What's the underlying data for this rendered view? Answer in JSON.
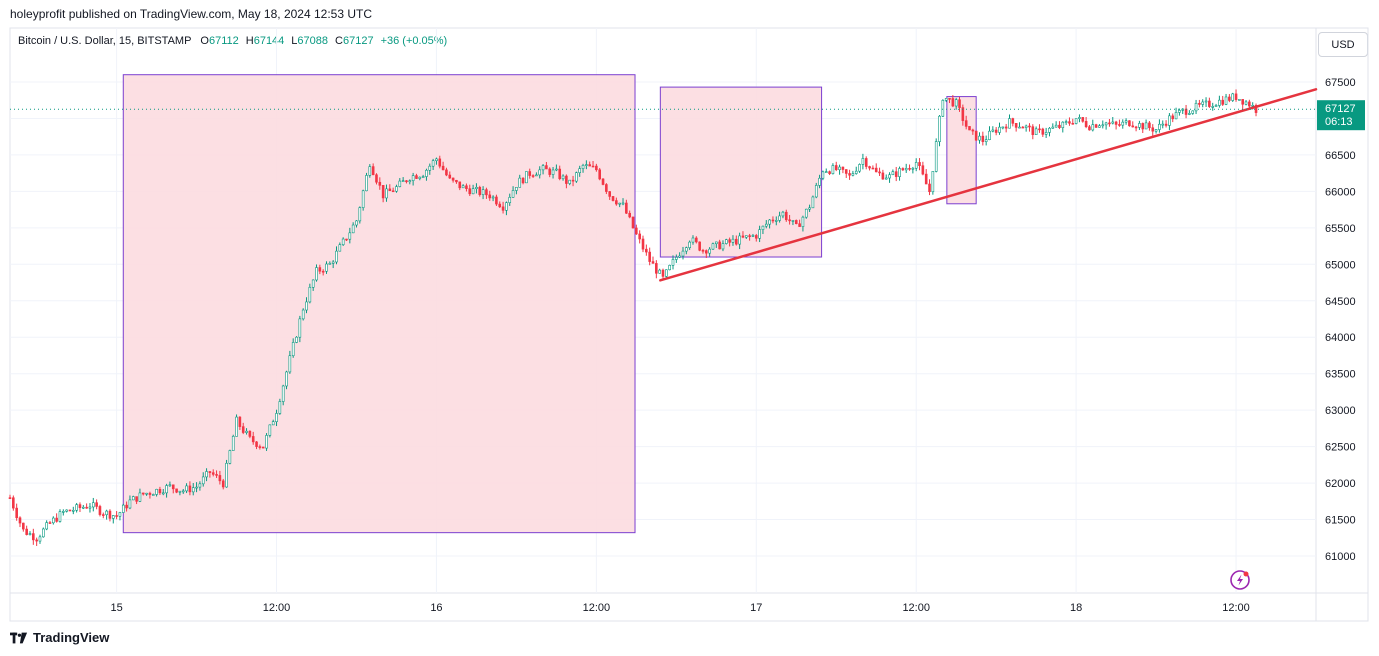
{
  "attribution": "holeyprofit published on TradingView.com, May 18, 2024 12:53 UTC",
  "legend": {
    "symbol": "Bitcoin / U.S. Dollar, 15, BITSTAMP",
    "open_label": "O",
    "open": "67112",
    "high_label": "H",
    "high": "67144",
    "low_label": "L",
    "low": "67088",
    "close_label": "C",
    "close": "67127",
    "change": "+36 (+0.05%)"
  },
  "currency_button": "USD",
  "footer_logo": "TradingView",
  "colors": {
    "up": "#089981",
    "down": "#f23645",
    "zone_fill": "#fcdce0",
    "zone_border": "#7b3fd0",
    "trendline": "#e5343f",
    "price_badge": "#089981"
  },
  "chart_data": {
    "type": "candlestick",
    "y_ticks": [
      67500,
      67000,
      66500,
      66000,
      65500,
      65000,
      64500,
      64000,
      63500,
      63000,
      62500,
      62000,
      61500,
      61000
    ],
    "y_tick_labels": [
      "67500",
      "67000",
      "66500",
      "66000",
      "65500",
      "65000",
      "64500",
      "64000",
      "63500",
      "63000",
      "62500",
      "62000",
      "61500",
      "61000"
    ],
    "x_ticks": [
      {
        "label": "15",
        "t": 0
      },
      {
        "label": "12:00",
        "t": 12
      },
      {
        "label": "16",
        "t": 24
      },
      {
        "label": "12:00",
        "t": 36
      },
      {
        "label": "17",
        "t": 48
      },
      {
        "label": "12:00",
        "t": 60
      },
      {
        "label": "18",
        "t": 72
      },
      {
        "label": "12:00",
        "t": 84
      }
    ],
    "x_range_hours": [
      -8,
      90
    ],
    "y_range": [
      60550,
      67950
    ],
    "last_price": "67127",
    "countdown": "06:13",
    "path_points": [
      [
        -8,
        61800
      ],
      [
        -7,
        61350
      ],
      [
        -6,
        61250
      ],
      [
        -5,
        61450
      ],
      [
        -4,
        61600
      ],
      [
        -3,
        61650
      ],
      [
        -2,
        61700
      ],
      [
        -1,
        61600
      ],
      [
        0,
        61550
      ],
      [
        1,
        61750
      ],
      [
        2,
        61850
      ],
      [
        3,
        61900
      ],
      [
        4,
        61950
      ],
      [
        5,
        61900
      ],
      [
        6,
        61950
      ],
      [
        7,
        62150
      ],
      [
        8,
        62000
      ],
      [
        9,
        62850
      ],
      [
        10,
        62600
      ],
      [
        11,
        62500
      ],
      [
        12,
        63000
      ],
      [
        13,
        63700
      ],
      [
        14,
        64400
      ],
      [
        15,
        64900
      ],
      [
        16,
        65000
      ],
      [
        17,
        65300
      ],
      [
        18,
        65600
      ],
      [
        19,
        66400
      ],
      [
        20,
        65950
      ],
      [
        21,
        66050
      ],
      [
        22,
        66200
      ],
      [
        23,
        66250
      ],
      [
        24,
        66450
      ],
      [
        25,
        66150
      ],
      [
        26,
        66050
      ],
      [
        27,
        66000
      ],
      [
        28,
        65950
      ],
      [
        29,
        65800
      ],
      [
        30,
        66100
      ],
      [
        31,
        66250
      ],
      [
        32,
        66300
      ],
      [
        33,
        66250
      ],
      [
        34,
        66100
      ],
      [
        35,
        66350
      ],
      [
        36,
        66300
      ],
      [
        37,
        65950
      ],
      [
        38,
        65800
      ],
      [
        38.5,
        65600
      ],
      [
        39,
        65400
      ],
      [
        40,
        65050
      ],
      [
        41,
        64800
      ],
      [
        42,
        65100
      ],
      [
        43,
        65350
      ],
      [
        44,
        65200
      ],
      [
        45,
        65250
      ],
      [
        46,
        65300
      ],
      [
        47,
        65350
      ],
      [
        48,
        65400
      ],
      [
        49,
        65600
      ],
      [
        50,
        65700
      ],
      [
        51,
        65500
      ],
      [
        52,
        65800
      ],
      [
        53,
        66300
      ],
      [
        54,
        66300
      ],
      [
        55,
        66200
      ],
      [
        56,
        66450
      ],
      [
        57,
        66250
      ],
      [
        58,
        66200
      ],
      [
        59,
        66300
      ],
      [
        60,
        66400
      ],
      [
        61,
        66000
      ],
      [
        62,
        67300
      ],
      [
        63,
        67200
      ],
      [
        64,
        66800
      ],
      [
        65,
        66700
      ],
      [
        66,
        66850
      ],
      [
        67,
        66950
      ],
      [
        68,
        66900
      ],
      [
        69,
        66800
      ],
      [
        70,
        66850
      ],
      [
        71,
        66900
      ],
      [
        72,
        67000
      ],
      [
        73,
        66900
      ],
      [
        74,
        66950
      ],
      [
        75,
        66900
      ],
      [
        76,
        66950
      ],
      [
        77,
        66900
      ],
      [
        78,
        66850
      ],
      [
        79,
        67000
      ],
      [
        80,
        67100
      ],
      [
        81,
        67150
      ],
      [
        82,
        67200
      ],
      [
        83,
        67250
      ],
      [
        84,
        67300
      ],
      [
        85,
        67200
      ],
      [
        85.5,
        67127
      ]
    ],
    "zones": [
      {
        "t_start": 0.5,
        "t_end": 38.9,
        "y_top": 67600,
        "y_bottom": 61320
      },
      {
        "t_start": 40.8,
        "t_end": 52.9,
        "y_top": 67430,
        "y_bottom": 65100
      },
      {
        "t_start": 62.3,
        "t_end": 64.5,
        "y_top": 67300,
        "y_bottom": 65830
      }
    ],
    "trendline": {
      "t_start": 40.8,
      "y_start": 64780,
      "t_end": 90,
      "y_end": 67400
    }
  }
}
